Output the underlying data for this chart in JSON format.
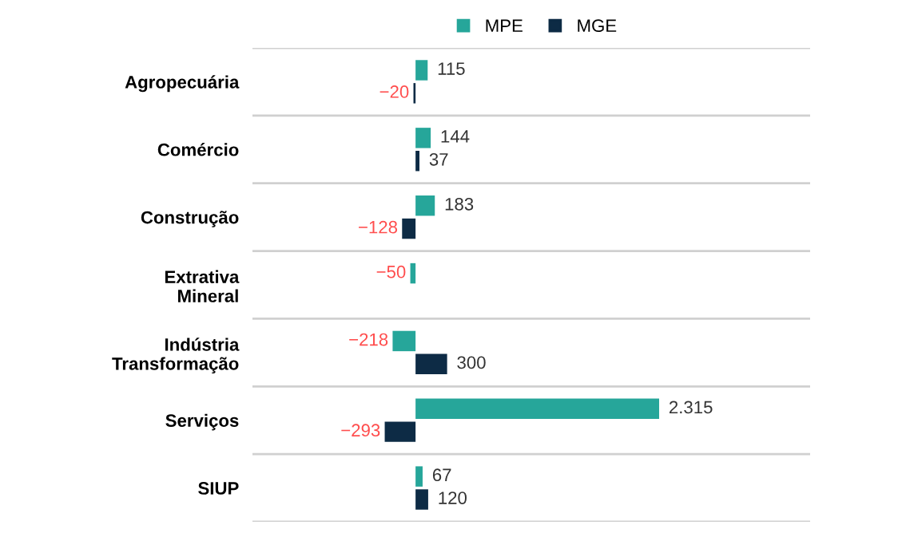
{
  "chart_data": {
    "type": "bar",
    "orientation": "horizontal",
    "categories": [
      "Agropecuária",
      "Comércio",
      "Construção",
      "Extrativa\nMineral",
      "Indústria\nTransformação",
      "Serviços",
      "SIUP"
    ],
    "series": [
      {
        "name": "MPE",
        "color": "#26a69a",
        "values": [
          115,
          144,
          183,
          -50,
          -218,
          2315,
          67
        ],
        "value_labels": [
          "115",
          "144",
          "183",
          "−50",
          "−218",
          "2.315",
          "67"
        ]
      },
      {
        "name": "MGE",
        "color": "#0d2b45",
        "values": [
          -20,
          37,
          -128,
          null,
          300,
          -293,
          120
        ],
        "value_labels": [
          "−20",
          "37",
          "−128",
          null,
          "300",
          "−293",
          "120"
        ]
      }
    ],
    "xlim": [
      -1550,
      3750
    ],
    "tick_labels": "y",
    "legend": "top",
    "grid": false
  }
}
